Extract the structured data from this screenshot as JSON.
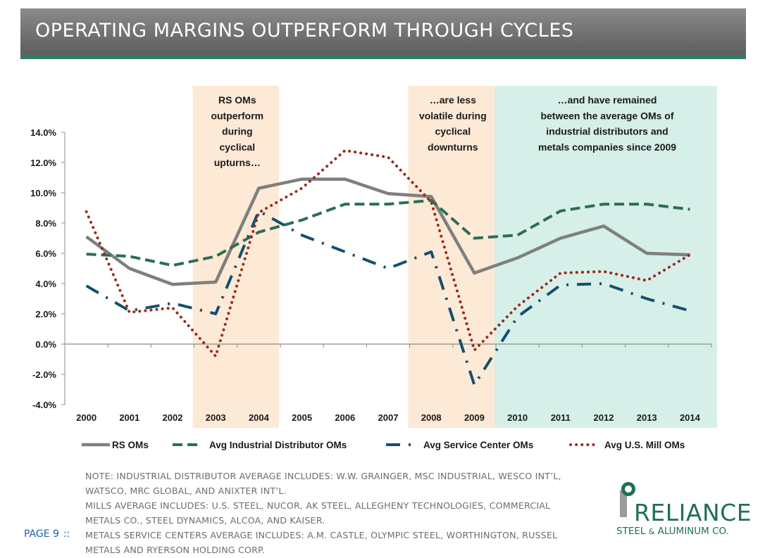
{
  "header": {
    "title": "OPERATING MARGINS OUTPERFORM THROUGH CYCLES"
  },
  "colors": {
    "banner": "#767676",
    "accent": "#2e7d5e",
    "shade_orange": "#fce9d6",
    "shade_teal": "#d6efe9",
    "rs": "#7f7f7f",
    "industrial": "#2c6e53",
    "service": "#14506e",
    "mill": "#9a2a1e"
  },
  "chart_data": {
    "type": "line",
    "categories": [
      "2000",
      "2001",
      "2002",
      "2003",
      "2004",
      "2005",
      "2006",
      "2007",
      "2008",
      "2009",
      "2010",
      "2011",
      "2012",
      "2013",
      "2014"
    ],
    "ylim": [
      -4.0,
      14.0
    ],
    "yticks": [
      "14.0%",
      "12.0%",
      "10.0%",
      "8.0%",
      "6.0%",
      "4.0%",
      "2.0%",
      "0.0%",
      "-2.0%",
      "-4.0%"
    ],
    "ytick_values": [
      14,
      12,
      10,
      8,
      6,
      4,
      2,
      0,
      -2,
      -4
    ],
    "series": [
      {
        "name": "RS OMs",
        "style": "solid",
        "values": [
          7.1,
          5.0,
          3.95,
          4.1,
          10.3,
          10.9,
          10.9,
          9.95,
          9.75,
          4.7,
          5.7,
          7.0,
          7.8,
          6.0,
          5.9
        ]
      },
      {
        "name": "Avg Industrial Distributor OMs",
        "style": "dash",
        "values": [
          5.95,
          5.8,
          5.2,
          5.8,
          7.4,
          8.2,
          9.25,
          9.25,
          9.5,
          7.0,
          7.2,
          8.8,
          9.25,
          9.25,
          8.9
        ]
      },
      {
        "name": "Avg Service Center OMs",
        "style": "dashdot",
        "values": [
          3.85,
          2.2,
          2.7,
          2.0,
          8.8,
          7.2,
          6.1,
          5.0,
          6.1,
          -2.7,
          1.8,
          3.9,
          4.0,
          3.0,
          2.2
        ]
      },
      {
        "name": "Avg U.S. Mill OMs",
        "style": "dot",
        "values": [
          8.75,
          2.1,
          2.4,
          -0.8,
          8.7,
          10.3,
          12.8,
          12.35,
          9.4,
          -0.4,
          2.5,
          4.7,
          4.8,
          4.2,
          5.9
        ]
      }
    ],
    "shaded_regions": [
      {
        "from": "2003",
        "to": "2004",
        "color": "orange",
        "annotation": [
          "RS OMs",
          "outperform",
          "during",
          "cyclical",
          "upturns…"
        ]
      },
      {
        "from": "2008",
        "to": "2009",
        "color": "orange",
        "annotation": [
          "…are less",
          "volatile during",
          "cyclical",
          "downturns"
        ]
      },
      {
        "from": "2010",
        "to": "2014",
        "color": "teal",
        "annotation": [
          "…and have remained",
          "between the average OMs of",
          "industrial distributors and",
          "metals companies since 2009"
        ]
      }
    ],
    "legend_position": "bottom"
  },
  "notes": [
    "NOTE: INDUSTRIAL DISTRIBUTOR AVERAGE INCLUDES: W.W. GRAINGER, MSC INDUSTRIAL, WESCO INT’L,",
    "WATSCO, MRC GLOBAL, AND ANIXTER INT’L.",
    "MILLS AVERAGE INCLUDES: U.S. STEEL, NUCOR, AK STEEL, ALLEGHENY TECHNOLOGIES, COMMERCIAL",
    "METALS CO., STEEL DYNAMICS, ALCOA, AND KAISER.",
    "METALS SERVICE CENTERS AVERAGE INCLUDES: A.M. CASTLE, OLYMPIC STEEL, WORTHINGTON, RUSSEL",
    "METALS AND RYERSON HOLDING CORP."
  ],
  "footer": {
    "page_label": "PAGE 9",
    "separator": "::"
  },
  "logo": {
    "word": "RELIANCE",
    "sub_left": "STEEL",
    "sub_amp": "&",
    "sub_right": "ALUMINUM CO."
  }
}
